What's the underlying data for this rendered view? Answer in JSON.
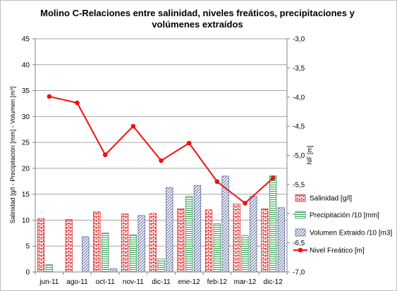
{
  "chart_data": {
    "type": "bar",
    "title_line1": "Molino C-Relaciones entre salinidad, niveles freáticos, precipitaciones y",
    "title_line2": "volúmenes extraídos",
    "ylabel": "Salinidad [g/l - Precipitación [mm] - Volumen [m³]",
    "y2label": "NF [m]",
    "categories": [
      "jun-11",
      "ago-11",
      "oct-11",
      "nov-11",
      "dic-11",
      "ene-12",
      "feb-12",
      "mar-12",
      "dic-12"
    ],
    "ylim": [
      0,
      45
    ],
    "yticks": [
      0,
      5,
      10,
      15,
      20,
      25,
      30,
      35,
      40,
      45
    ],
    "y2lim": [
      -7.0,
      -3.0
    ],
    "y2ticks": [
      "-3,0",
      "-3,5",
      "-4,0",
      "-4,5",
      "-5,0",
      "-5,5",
      "-6,0",
      "-6,5",
      "-7,0"
    ],
    "grid": true,
    "legend_position": "right",
    "series": [
      {
        "name": "Salinidad [g/l]",
        "type": "bar",
        "axis": "left",
        "color": "#e03030",
        "values": [
          10.3,
          10.1,
          11.6,
          11.2,
          11.3,
          12.2,
          12.0,
          13.1,
          12.2
        ]
      },
      {
        "name": "Precipitación /10 [mm]",
        "type": "bar",
        "axis": "left",
        "color": "#2e9e4e",
        "values": [
          1.4,
          0,
          7.5,
          7.2,
          2.5,
          14.6,
          9.3,
          7.0,
          18.6
        ]
      },
      {
        "name": "Volumen Extraido /10 [m3]",
        "type": "bar",
        "axis": "left",
        "color": "#5a6aa0",
        "values": [
          0,
          6.8,
          0.6,
          10.9,
          16.3,
          16.7,
          18.5,
          14.6,
          12.4
        ]
      },
      {
        "name": "Nivel Freático [m]",
        "type": "line",
        "axis": "right",
        "color": "#ee1111",
        "values": [
          -3.99,
          -4.1,
          -4.99,
          -4.5,
          -5.09,
          -4.79,
          -5.45,
          -5.82,
          -5.39
        ]
      }
    ]
  }
}
